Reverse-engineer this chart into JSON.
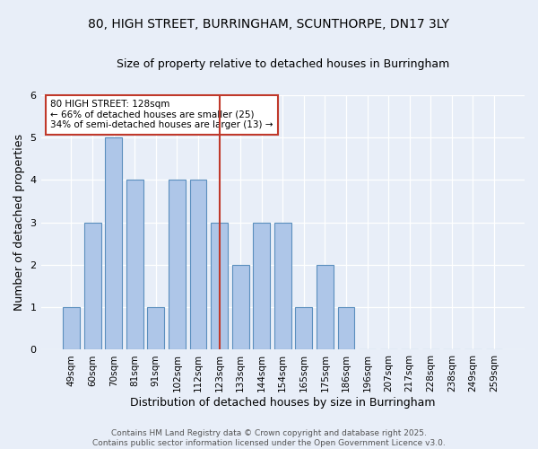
{
  "title": "80, HIGH STREET, BURRINGHAM, SCUNTHORPE, DN17 3LY",
  "subtitle": "Size of property relative to detached houses in Burringham",
  "xlabel": "Distribution of detached houses by size in Burringham",
  "ylabel": "Number of detached properties",
  "categories": [
    "49sqm",
    "60sqm",
    "70sqm",
    "81sqm",
    "91sqm",
    "102sqm",
    "112sqm",
    "123sqm",
    "133sqm",
    "144sqm",
    "154sqm",
    "165sqm",
    "175sqm",
    "186sqm",
    "196sqm",
    "207sqm",
    "217sqm",
    "228sqm",
    "238sqm",
    "249sqm",
    "259sqm"
  ],
  "values": [
    1,
    3,
    5,
    4,
    1,
    4,
    4,
    3,
    2,
    3,
    3,
    1,
    2,
    1,
    0,
    0,
    0,
    0,
    0,
    0,
    0
  ],
  "bar_color": "#aec6e8",
  "bar_edge_color": "#5b8fbe",
  "vline_x": 7,
  "vline_color": "#c0392b",
  "ylim": [
    0,
    6
  ],
  "yticks": [
    0,
    1,
    2,
    3,
    4,
    5,
    6
  ],
  "annotation_text": "80 HIGH STREET: 128sqm\n← 66% of detached houses are smaller (25)\n34% of semi-detached houses are larger (13) →",
  "annotation_box_color": "#ffffff",
  "annotation_box_edge": "#c0392b",
  "footer_line1": "Contains HM Land Registry data © Crown copyright and database right 2025.",
  "footer_line2": "Contains public sector information licensed under the Open Government Licence v3.0.",
  "bg_color": "#e8eef8",
  "title_fontsize": 10,
  "subtitle_fontsize": 9,
  "bar_width": 0.8
}
